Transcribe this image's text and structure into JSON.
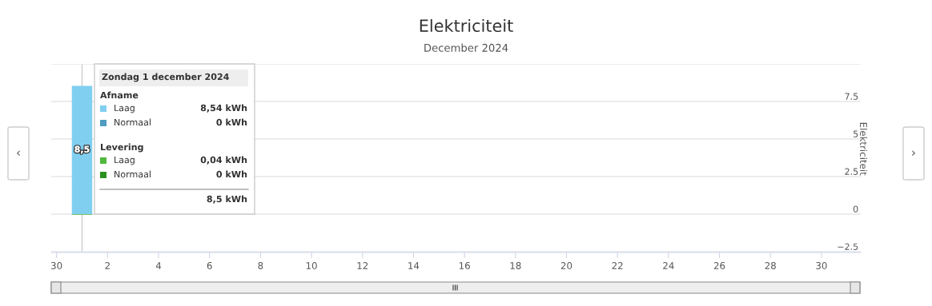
{
  "chart_data": {
    "type": "bar",
    "title": "Elektriciteit",
    "subtitle": "December 2024",
    "y2label": "Elektriciteit",
    "series": [
      {
        "name": "Laag",
        "color": "#80cff0",
        "x": [
          "2024-12-01"
        ],
        "values": [
          8.54
        ],
        "value_labels": [
          "8,5"
        ]
      },
      {
        "name": "Normaal",
        "color": "#4f9dc0",
        "x": [
          "2024-12-01"
        ],
        "values": [
          0
        ]
      },
      {
        "name": "Laag",
        "color": "#50b83c",
        "x": [
          "2024-12-01"
        ],
        "values": [
          -0.04
        ]
      },
      {
        "name": "Normaal",
        "color": "#2a9020",
        "x": [
          "2024-12-01"
        ],
        "values": [
          0
        ]
      }
    ],
    "xlim": [
      "2024-11-29T19:00",
      "2024-12-31T13:00"
    ],
    "xticks": [
      {
        "value": "2024-11-30",
        "label": "30"
      },
      {
        "value": "2024-12-02",
        "label": "2"
      },
      {
        "value": "2024-12-04",
        "label": "4"
      },
      {
        "value": "2024-12-06",
        "label": "6"
      },
      {
        "value": "2024-12-08",
        "label": "8"
      },
      {
        "value": "2024-12-10",
        "label": "10"
      },
      {
        "value": "2024-12-12",
        "label": "12"
      },
      {
        "value": "2024-12-14",
        "label": "14"
      },
      {
        "value": "2024-12-16",
        "label": "16"
      },
      {
        "value": "2024-12-18",
        "label": "18"
      },
      {
        "value": "2024-12-20",
        "label": "20"
      },
      {
        "value": "2024-12-22",
        "label": "22"
      },
      {
        "value": "2024-12-24",
        "label": "24"
      },
      {
        "value": "2024-12-26",
        "label": "26"
      },
      {
        "value": "2024-12-28",
        "label": "28"
      },
      {
        "value": "2024-12-30",
        "label": "30"
      }
    ],
    "ylim": [
      -2.55,
      10
    ],
    "yticks": [
      {
        "value": -2.5,
        "label": "−2.5"
      },
      0,
      2.5,
      5,
      7.5,
      {
        "value": 10,
        "label": null
      }
    ],
    "grid": "y",
    "ref_lines": [
      {
        "axis": "x",
        "value": "2024-12-01",
        "color": "#cccccc"
      }
    ],
    "annotations": [
      "Zondag 1 december 2024",
      "Afname",
      "8,54 kWh",
      "0 kWh",
      "Levering",
      "0,04 kWh",
      "0 kWh",
      "8,5 kWh",
      "‹",
      "›"
    ]
  }
}
